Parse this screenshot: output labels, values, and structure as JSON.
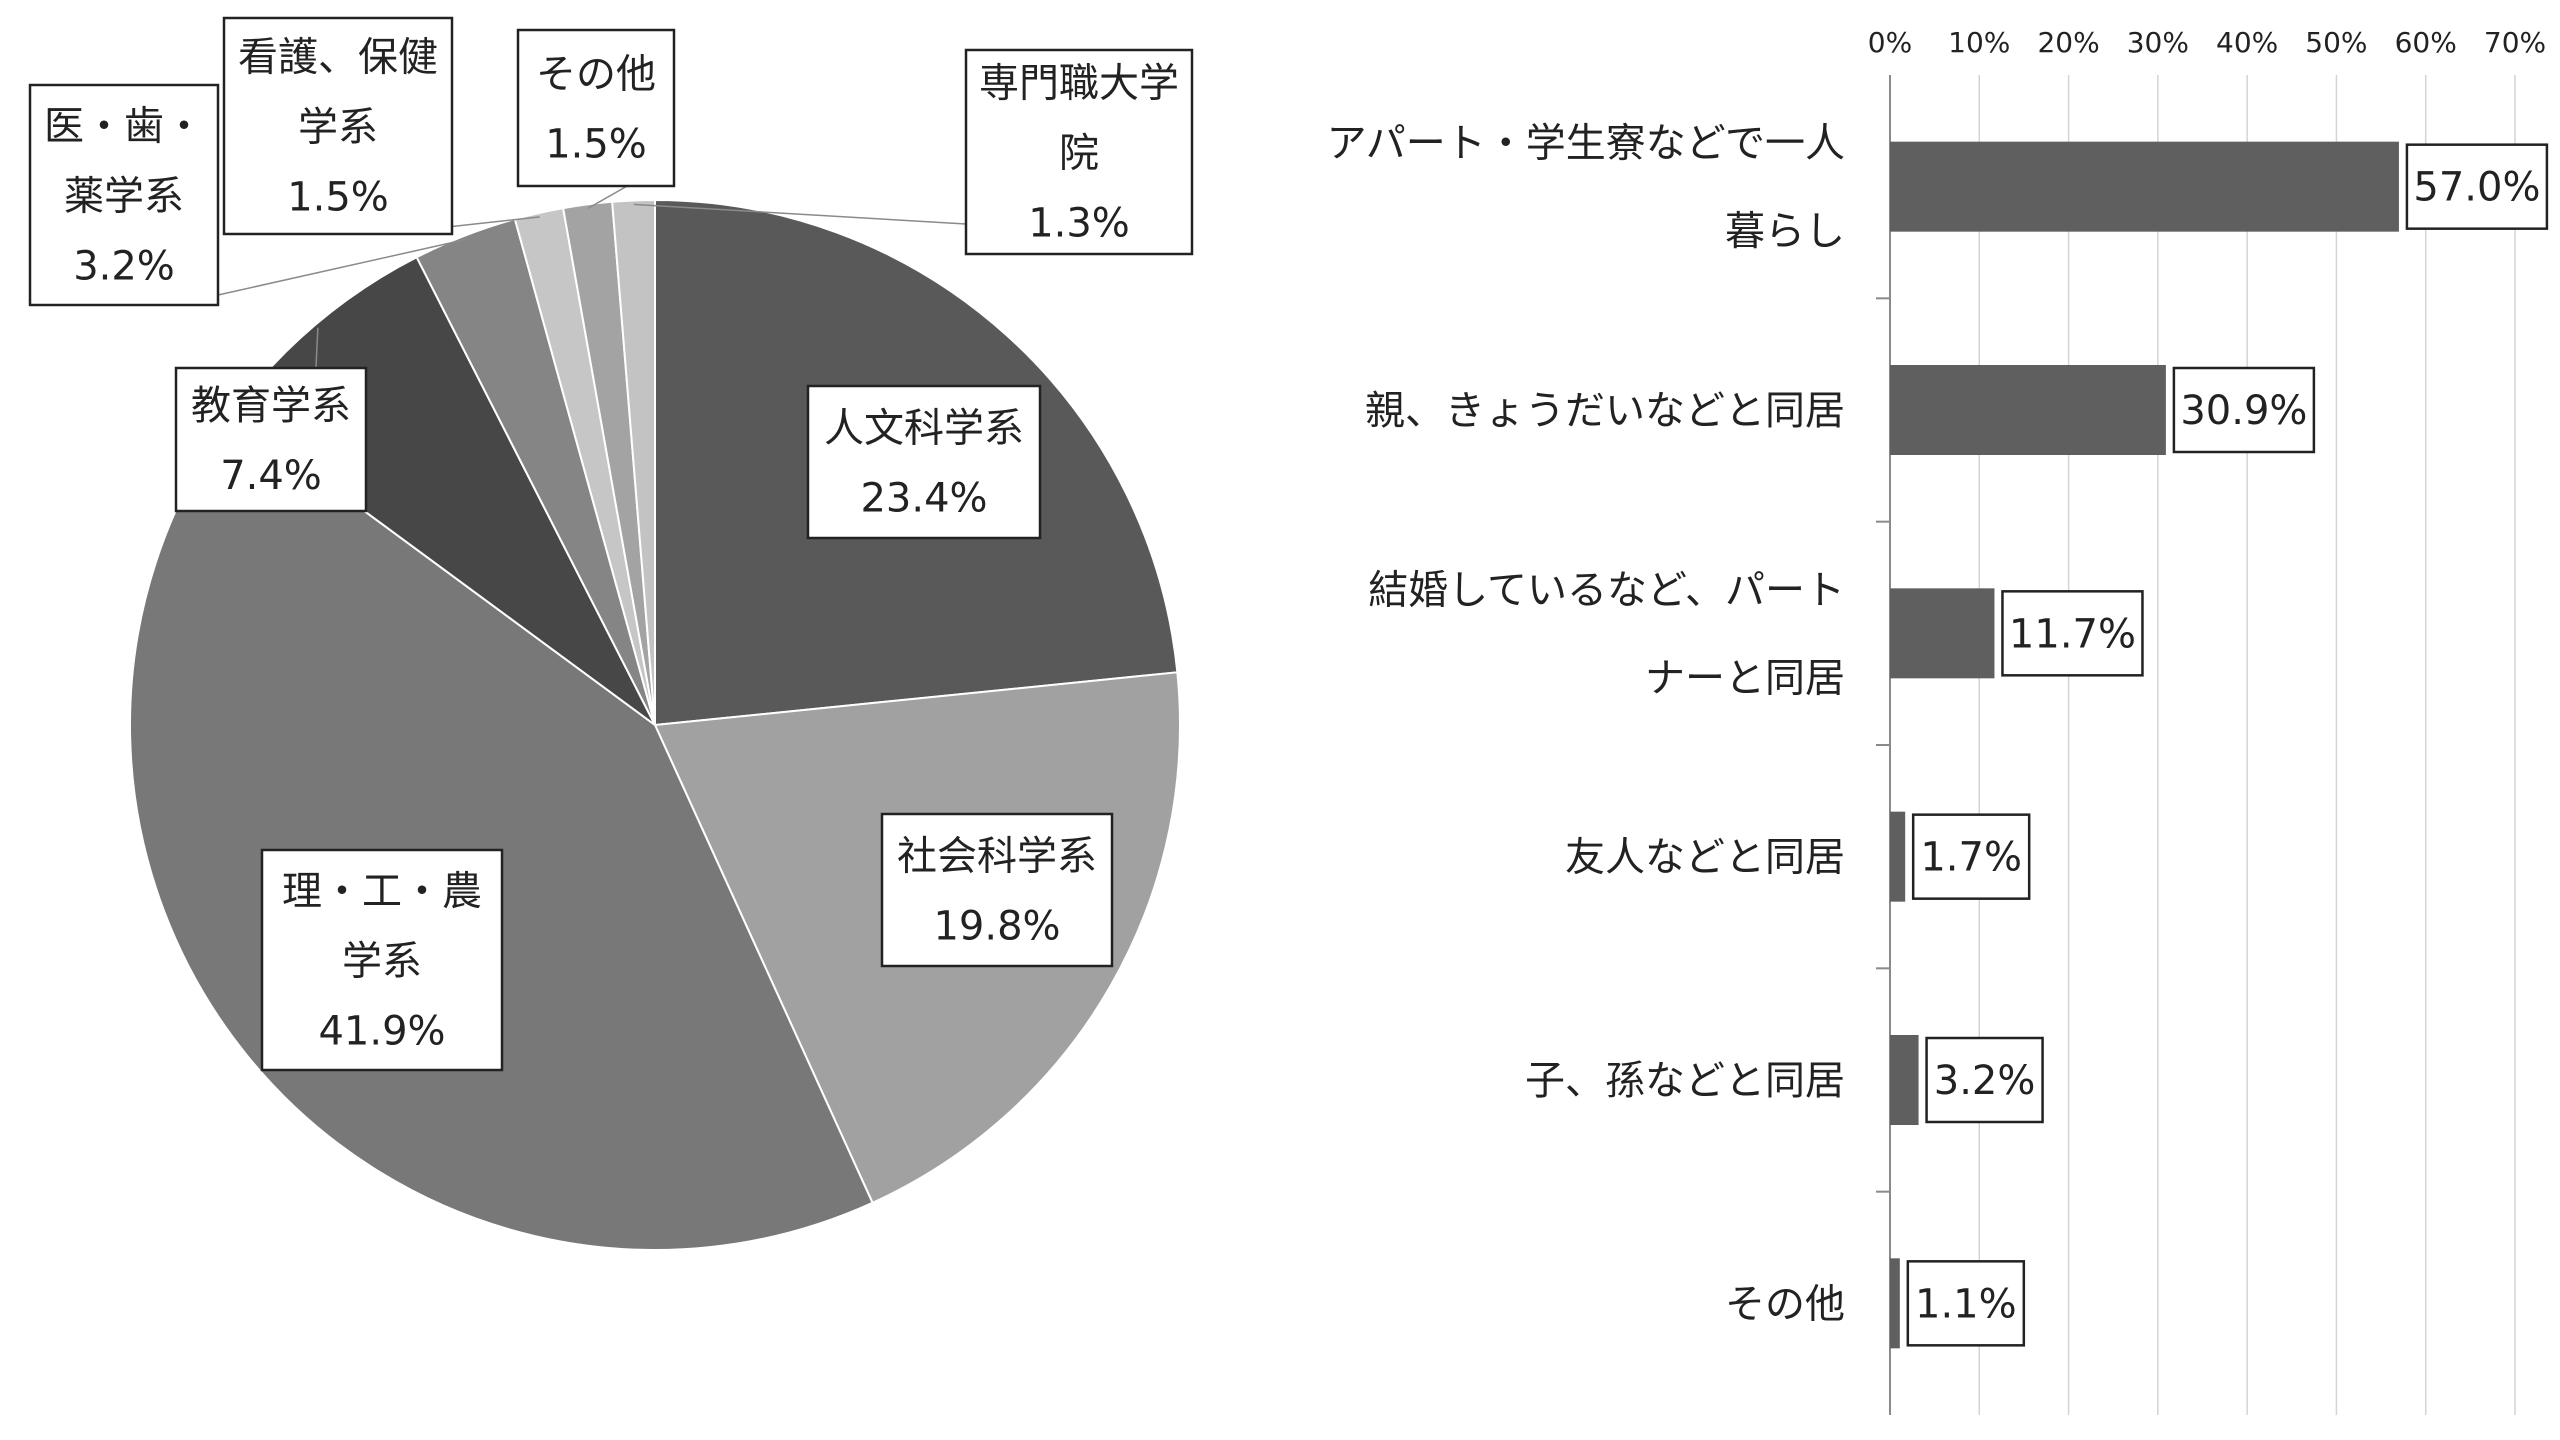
{
  "chart_data": [
    {
      "type": "pie",
      "title": "",
      "slices": [
        {
          "label": [
            "人文科学系"
          ],
          "value": 23.4,
          "value_label": "23.4%",
          "color": "#595959"
        },
        {
          "label": [
            "社会科学系"
          ],
          "value": 19.8,
          "value_label": "19.8%",
          "color": "#a1a1a1"
        },
        {
          "label": [
            "理・工・農",
            "学系"
          ],
          "value": 41.9,
          "value_label": "41.9%",
          "color": "#787878"
        },
        {
          "label": [
            "教育学系"
          ],
          "value": 7.4,
          "value_label": "7.4%",
          "color": "#474747"
        },
        {
          "label": [
            "医・歯・",
            "薬学系"
          ],
          "value": 3.2,
          "value_label": "3.2%",
          "color": "#858585"
        },
        {
          "label": [
            "看護、保健",
            "学系"
          ],
          "value": 1.5,
          "value_label": "1.5%",
          "color": "#c6c6c6"
        },
        {
          "label": [
            "その他"
          ],
          "value": 1.5,
          "value_label": "1.5%",
          "color": "#a3a3a3"
        },
        {
          "label": [
            "専門職大学",
            "院"
          ],
          "value": 1.3,
          "value_label": "1.3%",
          "color": "#c3c3c3"
        }
      ]
    },
    {
      "type": "bar",
      "orientation": "horizontal",
      "title": "",
      "categories": [
        [
          "アパート・学生寮などで一人",
          "暮らし"
        ],
        [
          "親、きょうだいなどと同居"
        ],
        [
          "結婚しているなど、パート",
          "ナーと同居"
        ],
        [
          "友人などと同居"
        ],
        [
          "子、孫などと同居"
        ],
        [
          "その他"
        ]
      ],
      "values": [
        57.0,
        30.9,
        11.7,
        1.7,
        3.2,
        1.1
      ],
      "value_labels": [
        "57.0%",
        "30.9%",
        "11.7%",
        "1.7%",
        "3.2%",
        "1.1%"
      ],
      "xlim": [
        0,
        70
      ],
      "x_ticks": [
        "0%",
        "10%",
        "20%",
        "30%",
        "40%",
        "50%",
        "60%",
        "70%"
      ],
      "x_axis_position": "top",
      "grid": true,
      "bar_color": "#5f5f5f"
    }
  ]
}
